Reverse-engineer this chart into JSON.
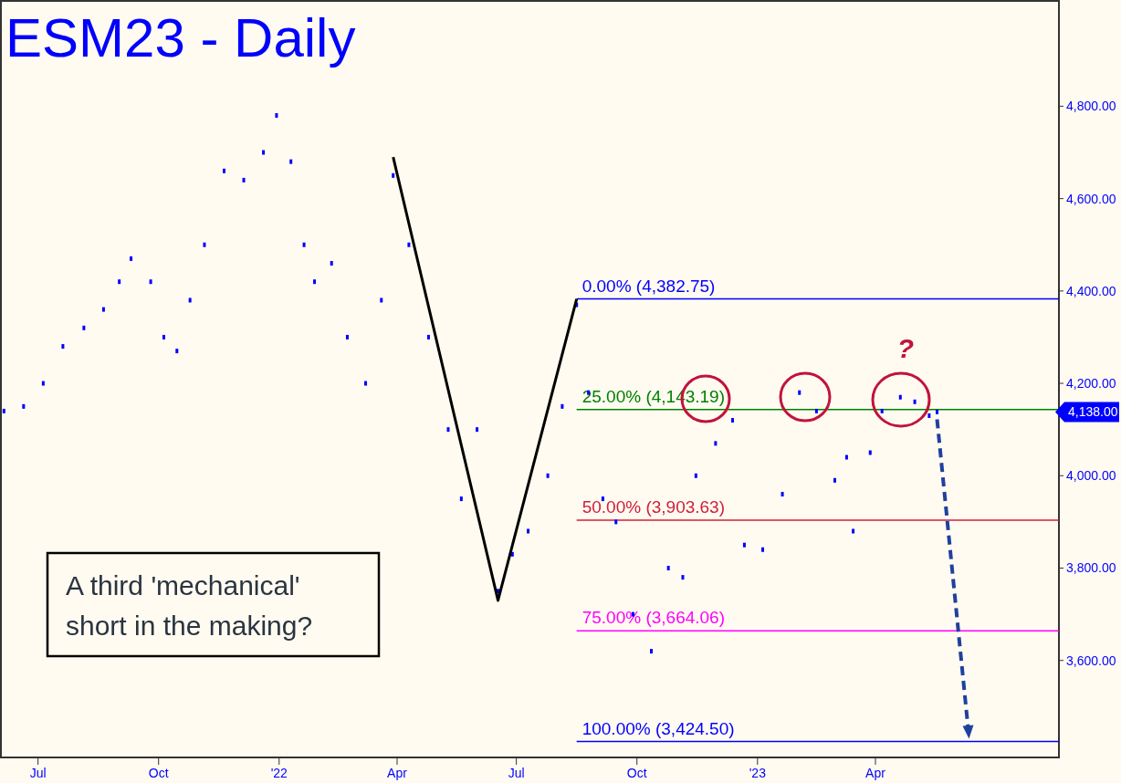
{
  "chart_data": {
    "type": "scatter",
    "title": "ESM23 - Daily",
    "marker": "square",
    "xlim": [
      "2021-06-02",
      "2023-08-19"
    ],
    "ylim": [
      3390,
      5030
    ],
    "xticks": [
      {
        "value": "2021-07-01",
        "label": "Jul"
      },
      {
        "value": "2021-10-01",
        "label": "Oct"
      },
      {
        "value": "2022-01-01",
        "label": "'22"
      },
      {
        "value": "2022-04-01",
        "label": "Apr"
      },
      {
        "value": "2022-07-01",
        "label": "Jul"
      },
      {
        "value": "2022-10-01",
        "label": "Oct"
      },
      {
        "value": "2023-01-01",
        "label": "'23"
      },
      {
        "value": "2023-04-01",
        "label": "Apr"
      }
    ],
    "yticks": [
      {
        "value": 3600,
        "label": "3,600.00"
      },
      {
        "value": 3800,
        "label": "3,800.00"
      },
      {
        "value": 4000,
        "label": "4,000.00"
      },
      {
        "value": 4200,
        "label": "4,200.00"
      },
      {
        "value": 4400,
        "label": "4,400.00"
      },
      {
        "value": 4600,
        "label": "4,600.00"
      },
      {
        "value": 4800,
        "label": "4,800.00"
      }
    ],
    "series": [
      {
        "color": "#0000ff",
        "x": [
          "2021-06-05",
          "2021-06-20",
          "2021-07-05",
          "2021-07-20",
          "2021-08-05",
          "2021-08-20",
          "2021-09-01",
          "2021-09-10",
          "2021-09-25",
          "2021-10-05",
          "2021-10-15",
          "2021-10-25",
          "2021-11-05",
          "2021-11-20",
          "2021-12-05",
          "2021-12-20",
          "2021-12-30",
          "2022-01-10",
          "2022-01-20",
          "2022-01-28",
          "2022-02-10",
          "2022-02-22",
          "2022-03-08",
          "2022-03-20",
          "2022-03-29",
          "2022-04-10",
          "2022-04-25",
          "2022-05-10",
          "2022-05-20",
          "2022-06-01",
          "2022-06-17",
          "2022-06-28",
          "2022-07-10",
          "2022-07-25",
          "2022-08-05",
          "2022-08-16",
          "2022-08-25",
          "2022-09-05",
          "2022-09-15",
          "2022-09-28",
          "2022-10-12",
          "2022-10-25",
          "2022-11-05",
          "2022-11-15",
          "2022-11-30",
          "2022-12-13",
          "2022-12-22",
          "2023-01-05",
          "2023-01-20",
          "2023-02-02",
          "2023-02-15",
          "2023-03-01",
          "2023-03-10",
          "2023-03-15",
          "2023-03-28",
          "2023-04-06",
          "2023-04-20",
          "2023-05-01",
          "2023-05-12",
          "2023-05-18"
        ],
        "values": [
          4140,
          4150,
          4200,
          4280,
          4320,
          4360,
          4420,
          4470,
          4420,
          4300,
          4270,
          4380,
          4500,
          4660,
          4640,
          4700,
          4780,
          4680,
          4500,
          4420,
          4460,
          4300,
          4200,
          4380,
          4650,
          4500,
          4300,
          4100,
          3950,
          4100,
          3750,
          3830,
          3880,
          4000,
          4150,
          4370,
          4180,
          3950,
          3900,
          3700,
          3620,
          3800,
          3780,
          4000,
          4070,
          4120,
          3850,
          3840,
          3960,
          4180,
          4140,
          3990,
          4040,
          3880,
          4050,
          4140,
          4170,
          4160,
          4130,
          4138
        ]
      },
      {
        "type": "line",
        "color": "#000000",
        "line_style": "solid",
        "marker": "none",
        "x": [
          "2022-03-29",
          "2022-06-17",
          "2022-08-16"
        ],
        "values": [
          4690,
          3730,
          4382.75
        ]
      }
    ],
    "ref_lines": [
      {
        "axis": "y",
        "value": 4382.75,
        "label": "0.00% (4,382.75)",
        "color": "#0000ff"
      },
      {
        "axis": "y",
        "value": 4143.19,
        "label": "25.00% (4,143.19)",
        "color": "#008000"
      },
      {
        "axis": "y",
        "value": 3903.63,
        "label": "50.00% (3,903.63)",
        "color": "#d0203c"
      },
      {
        "axis": "y",
        "value": 3664.06,
        "label": "75.00% (3,664.06)",
        "color": "#ff00ff"
      },
      {
        "axis": "y",
        "value": 3424.5,
        "label": "100.00% (3,424.50)",
        "color": "#0000ff"
      }
    ],
    "annotations": [
      "A third 'mechanical' short in the making?",
      "?",
      "4,138.00"
    ]
  }
}
